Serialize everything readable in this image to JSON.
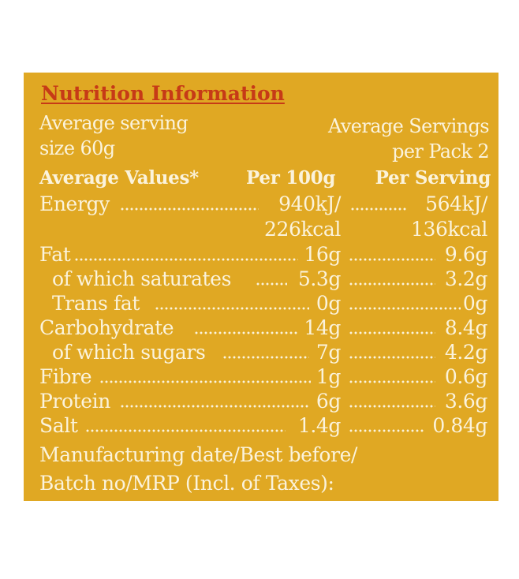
{
  "title": "Nutrition Information",
  "serving_size": [
    "Average serving",
    "size 60g"
  ],
  "servings_per_pack": [
    "Average Servings",
    "per Pack 2"
  ],
  "header": {
    "label": "Average Values*",
    "col1": "Per 100g",
    "col2": "Per Serving"
  },
  "rows": [
    {
      "label": "Energy",
      "per100g": "940kJ/",
      "per100g_2": "226kcal",
      "perServing": "564kJ/",
      "perServing_2": "136kcal"
    },
    {
      "label": "Fat",
      "per100g": "16g",
      "perServing": "9.6g"
    },
    {
      "label": "of which saturates",
      "per100g": "5.3g",
      "perServing": "3.2g"
    },
    {
      "label": "Trans fat",
      "per100g": "0g",
      "perServing": "0g"
    },
    {
      "label": "Carbohydrate",
      "per100g": "14g",
      "perServing": "8.4g"
    },
    {
      "label": "of which sugars",
      "per100g": "7g",
      "perServing": "4.2g"
    },
    {
      "label": "Fibre",
      "per100g": "1g",
      "perServing": "0.6g"
    },
    {
      "label": "Protein",
      "per100g": "6g",
      "perServing": "3.6g"
    },
    {
      "label": "Salt",
      "per100g": "1.4g",
      "perServing": "0.84g"
    }
  ],
  "footer": [
    "Manufacturing date/Best before/",
    "Batch no/MRP (Incl. of Taxes):"
  ],
  "colors": {
    "panel": "#e0a823",
    "text": "#fbf3dc",
    "title": "#c63a17"
  }
}
